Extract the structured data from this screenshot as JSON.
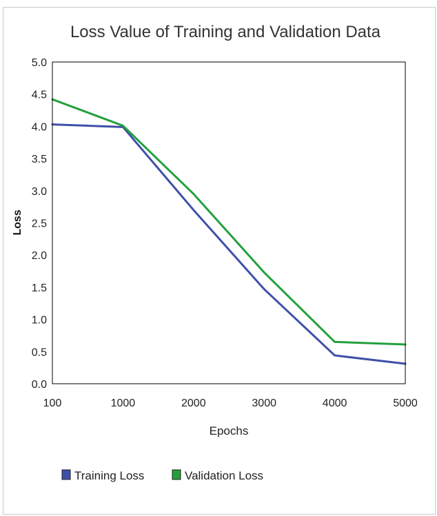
{
  "chart_data": {
    "type": "line",
    "title": "Loss Value of Training and Validation Data",
    "xlabel": "Epochs",
    "ylabel": "Loss",
    "categories": [
      "100",
      "1000",
      "2000",
      "3000",
      "4000",
      "5000"
    ],
    "ylim": [
      0,
      5
    ],
    "yticks": [
      "0.0",
      "0.5",
      "1.0",
      "1.5",
      "2.0",
      "2.5",
      "3.0",
      "3.5",
      "4.0",
      "4.5",
      "5.0"
    ],
    "grid": false,
    "legend_position": "bottom-left",
    "series": [
      {
        "name": "Training Loss",
        "color": "#3f4fa8",
        "values": [
          4.03,
          3.99,
          2.7,
          1.47,
          0.44,
          0.31
        ]
      },
      {
        "name": "Validation Loss",
        "color": "#22a03c",
        "values": [
          4.42,
          4.01,
          2.95,
          1.73,
          0.65,
          0.61
        ]
      }
    ]
  }
}
